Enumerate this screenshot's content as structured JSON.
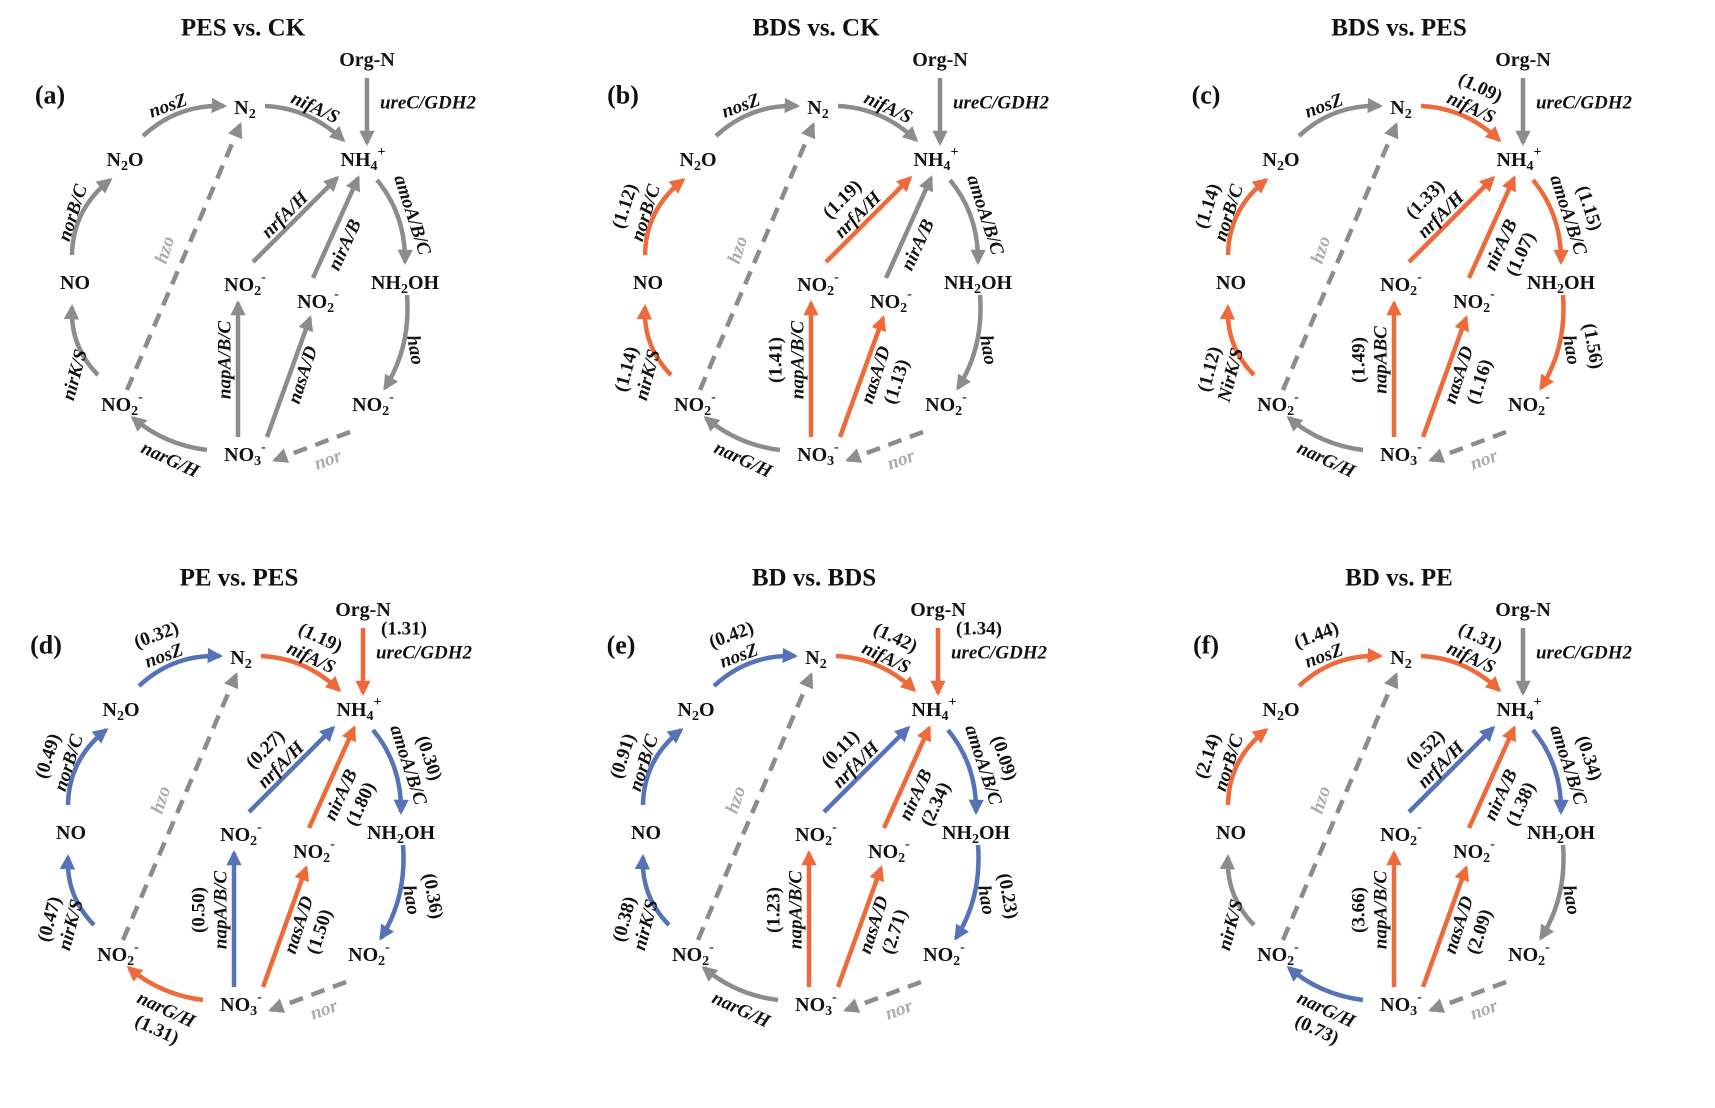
{
  "colors": {
    "increase": "#EE6A3A",
    "decrease": "#5673B8",
    "unchanged": "#8C8C8C",
    "inactive_label": "#ABABAB"
  },
  "nodes": {
    "orgN": [
      {
        "t": "Org-N"
      }
    ],
    "N2": [
      {
        "t": "N"
      },
      {
        "t": "2",
        "s": "sub"
      }
    ],
    "NH4": [
      {
        "t": "NH"
      },
      {
        "t": "4",
        "s": "sub"
      },
      {
        "t": "+",
        "s": "sup"
      }
    ],
    "N2O": [
      {
        "t": "N"
      },
      {
        "t": "2",
        "s": "sub"
      },
      {
        "t": "O"
      }
    ],
    "NO": [
      {
        "t": "NO"
      }
    ],
    "NO2_a": [
      {
        "t": "NO"
      },
      {
        "t": "2",
        "s": "sub"
      },
      {
        "t": "-",
        "s": "sup"
      }
    ],
    "NO3": [
      {
        "t": "NO"
      },
      {
        "t": "3",
        "s": "sub"
      },
      {
        "t": "-",
        "s": "sup"
      }
    ],
    "NO2_b": [
      {
        "t": "NO"
      },
      {
        "t": "2",
        "s": "sub"
      },
      {
        "t": "-",
        "s": "sup"
      }
    ],
    "NO2_c": [
      {
        "t": "NO"
      },
      {
        "t": "2",
        "s": "sub"
      },
      {
        "t": "-",
        "s": "sup"
      }
    ],
    "NH2OH": [
      {
        "t": "NH"
      },
      {
        "t": "2",
        "s": "sub"
      },
      {
        "t": "OH"
      }
    ],
    "NO2_d": [
      {
        "t": "NO"
      },
      {
        "t": "2",
        "s": "sub"
      },
      {
        "t": "-",
        "s": "sup"
      }
    ]
  },
  "panels": [
    {
      "label": "(a)",
      "title": "PES vs. CK",
      "edges": {
        "nosZ": {
          "gene": "nosZ",
          "value": null,
          "trend": "unchanged"
        },
        "nifA": {
          "gene": "nifA/S",
          "value": null,
          "trend": "unchanged"
        },
        "ureC": {
          "gene": "ureC/GDH2",
          "value": null,
          "trend": "unchanged"
        },
        "norB": {
          "gene": "norB/C",
          "value": null,
          "trend": "unchanged"
        },
        "hzo": {
          "gene": "hzo",
          "value": null,
          "trend": "unchanged"
        },
        "nrfA": {
          "gene": "nrfA/H",
          "value": null,
          "trend": "unchanged"
        },
        "nirA": {
          "gene": "nirA/B",
          "value": null,
          "trend": "unchanged"
        },
        "amoA": {
          "gene": "amoA/B/C",
          "value": null,
          "trend": "unchanged"
        },
        "nirK": {
          "gene": "nirK/S",
          "value": null,
          "trend": "unchanged"
        },
        "napA": {
          "gene": "napA/B/C",
          "value": null,
          "trend": "unchanged"
        },
        "nasA": {
          "gene": "nasA/D",
          "value": null,
          "trend": "unchanged"
        },
        "hao": {
          "gene": "hao",
          "value": null,
          "trend": "unchanged"
        },
        "narG": {
          "gene": "narG/H",
          "value": null,
          "trend": "unchanged"
        },
        "nor": {
          "gene": "nor",
          "value": null,
          "trend": "unchanged"
        }
      }
    },
    {
      "label": "(b)",
      "title": "BDS vs. CK",
      "edges": {
        "nosZ": {
          "gene": "nosZ",
          "value": null,
          "trend": "unchanged"
        },
        "nifA": {
          "gene": "nifA/S",
          "value": null,
          "trend": "unchanged"
        },
        "ureC": {
          "gene": "ureC/GDH2",
          "value": null,
          "trend": "unchanged"
        },
        "norB": {
          "gene": "norB/C",
          "value": "(1.12)",
          "trend": "increase"
        },
        "hzo": {
          "gene": "hzo",
          "value": null,
          "trend": "unchanged"
        },
        "nrfA": {
          "gene": "nrfA/H",
          "value": "(1.19)",
          "trend": "increase"
        },
        "nirA": {
          "gene": "nirA/B",
          "value": null,
          "trend": "unchanged"
        },
        "amoA": {
          "gene": "amoA/B/C",
          "value": null,
          "trend": "unchanged"
        },
        "nirK": {
          "gene": "nirK/S",
          "value": "(1.14)",
          "trend": "increase"
        },
        "napA": {
          "gene": "napA/B/C",
          "value": "(1.41)",
          "trend": "increase"
        },
        "nasA": {
          "gene": "nasA/D",
          "value": "(1.13)",
          "trend": "increase"
        },
        "hao": {
          "gene": "hao",
          "value": null,
          "trend": "unchanged"
        },
        "narG": {
          "gene": "narG/H",
          "value": null,
          "trend": "unchanged"
        },
        "nor": {
          "gene": "nor",
          "value": null,
          "trend": "unchanged"
        }
      }
    },
    {
      "label": "(c)",
      "title": "BDS vs. PES",
      "edges": {
        "nosZ": {
          "gene": "nosZ",
          "value": null,
          "trend": "unchanged"
        },
        "nifA": {
          "gene": "nifA/S",
          "value": "(1.09)",
          "trend": "increase"
        },
        "ureC": {
          "gene": "ureC/GDH2",
          "value": null,
          "trend": "unchanged"
        },
        "norB": {
          "gene": "norB/C",
          "value": "(1.14)",
          "trend": "increase"
        },
        "hzo": {
          "gene": "hzo",
          "value": null,
          "trend": "unchanged"
        },
        "nrfA": {
          "gene": "nrfA/H",
          "value": "(1.33)",
          "trend": "increase"
        },
        "nirA": {
          "gene": "nirA/B",
          "value": "(1.07)",
          "trend": "increase"
        },
        "amoA": {
          "gene": "amoA/B/C",
          "value": "(1.15)",
          "trend": "increase"
        },
        "nirK": {
          "gene": "NirK/S",
          "value": "(1.12)",
          "trend": "increase"
        },
        "napA": {
          "gene": "napABC",
          "value": "(1.49)",
          "trend": "increase"
        },
        "nasA": {
          "gene": "nasA/D",
          "value": "(1.16)",
          "trend": "increase"
        },
        "hao": {
          "gene": "hao",
          "value": "(1.56)",
          "trend": "increase"
        },
        "narG": {
          "gene": "narG/H",
          "value": null,
          "trend": "unchanged"
        },
        "nor": {
          "gene": "nor",
          "value": null,
          "trend": "unchanged"
        }
      }
    },
    {
      "label": "(d)",
      "title": "PE vs. PES",
      "edges": {
        "nosZ": {
          "gene": "nosZ",
          "value": "(0.32)",
          "trend": "decrease"
        },
        "nifA": {
          "gene": "nifA/S",
          "value": "(1.19)",
          "trend": "increase"
        },
        "ureC": {
          "gene": "ureC/GDH2",
          "value": "(1.31)",
          "trend": "increase"
        },
        "norB": {
          "gene": "norB/C",
          "value": "(0.49)",
          "trend": "decrease"
        },
        "hzo": {
          "gene": "hzo",
          "value": null,
          "trend": "unchanged"
        },
        "nrfA": {
          "gene": "nrfA/H",
          "value": "(0.27)",
          "trend": "decrease"
        },
        "nirA": {
          "gene": "nirA/B",
          "value": "(1.80)",
          "trend": "increase"
        },
        "amoA": {
          "gene": "amoA/B/C",
          "value": "(0.30)",
          "trend": "decrease"
        },
        "nirK": {
          "gene": "nirK/S",
          "value": "(0.47)",
          "trend": "decrease"
        },
        "napA": {
          "gene": "napA/B/C",
          "value": "(0.50)",
          "trend": "decrease"
        },
        "nasA": {
          "gene": "nasA/D",
          "value": "(1.50)",
          "trend": "increase"
        },
        "hao": {
          "gene": "hao",
          "value": "(0.36)",
          "trend": "decrease"
        },
        "narG": {
          "gene": "narG/H",
          "value": "(1.31)",
          "trend": "increase"
        },
        "nor": {
          "gene": "nor",
          "value": null,
          "trend": "unchanged"
        }
      }
    },
    {
      "label": "(e)",
      "title": "BD vs. BDS",
      "edges": {
        "nosZ": {
          "gene": "nosZ",
          "value": "(0.42)",
          "trend": "decrease"
        },
        "nifA": {
          "gene": "nifA/S",
          "value": "(1.42)",
          "trend": "increase"
        },
        "ureC": {
          "gene": "ureC/GDH2",
          "value": "(1.34)",
          "trend": "increase"
        },
        "norB": {
          "gene": "norB/C",
          "value": "(0.91)",
          "trend": "decrease"
        },
        "hzo": {
          "gene": "hzo",
          "value": null,
          "trend": "unchanged"
        },
        "nrfA": {
          "gene": "nrfA/H",
          "value": "(0.11)",
          "trend": "decrease"
        },
        "nirA": {
          "gene": "nirA/B",
          "value": "(2.34)",
          "trend": "increase"
        },
        "amoA": {
          "gene": "amoA/B/C",
          "value": "(0.09)",
          "trend": "decrease"
        },
        "nirK": {
          "gene": "nirK/S",
          "value": "(0.38)",
          "trend": "decrease"
        },
        "napA": {
          "gene": "napA/B/C",
          "value": "(1.23)",
          "trend": "increase"
        },
        "nasA": {
          "gene": "nasA/D",
          "value": "(2.71)",
          "trend": "increase"
        },
        "hao": {
          "gene": "hao",
          "value": "(0.23)",
          "trend": "decrease"
        },
        "narG": {
          "gene": "narG/H",
          "value": null,
          "trend": "unchanged"
        },
        "nor": {
          "gene": "nor",
          "value": null,
          "trend": "unchanged"
        }
      }
    },
    {
      "label": "(f)",
      "title": "BD vs. PE",
      "edges": {
        "nosZ": {
          "gene": "nosZ",
          "value": "(1.44)",
          "trend": "increase"
        },
        "nifA": {
          "gene": "nifA/S",
          "value": "(1.31)",
          "trend": "increase"
        },
        "ureC": {
          "gene": "ureC/GDH2",
          "value": null,
          "trend": "unchanged"
        },
        "norB": {
          "gene": "norB/C",
          "value": "(2.14)",
          "trend": "increase"
        },
        "hzo": {
          "gene": "hzo",
          "value": null,
          "trend": "unchanged"
        },
        "nrfA": {
          "gene": "nrfA/H",
          "value": "(0.52)",
          "trend": "decrease"
        },
        "nirA": {
          "gene": "nirA/B",
          "value": "(1.38)",
          "trend": "increase"
        },
        "amoA": {
          "gene": "amoA/B/C",
          "value": "(0.34)",
          "trend": "decrease"
        },
        "nirK": {
          "gene": "nirK/S",
          "value": null,
          "trend": "unchanged"
        },
        "napA": {
          "gene": "napA/B/C",
          "value": "(3.66)",
          "trend": "increase"
        },
        "nasA": {
          "gene": "nasA/D",
          "value": "(2.09)",
          "trend": "increase"
        },
        "hao": {
          "gene": "hao",
          "value": null,
          "trend": "unchanged"
        },
        "narG": {
          "gene": "narG/H",
          "value": "(0.73)",
          "trend": "decrease"
        },
        "nor": {
          "gene": "nor",
          "value": null,
          "trend": "unchanged"
        }
      }
    }
  ]
}
